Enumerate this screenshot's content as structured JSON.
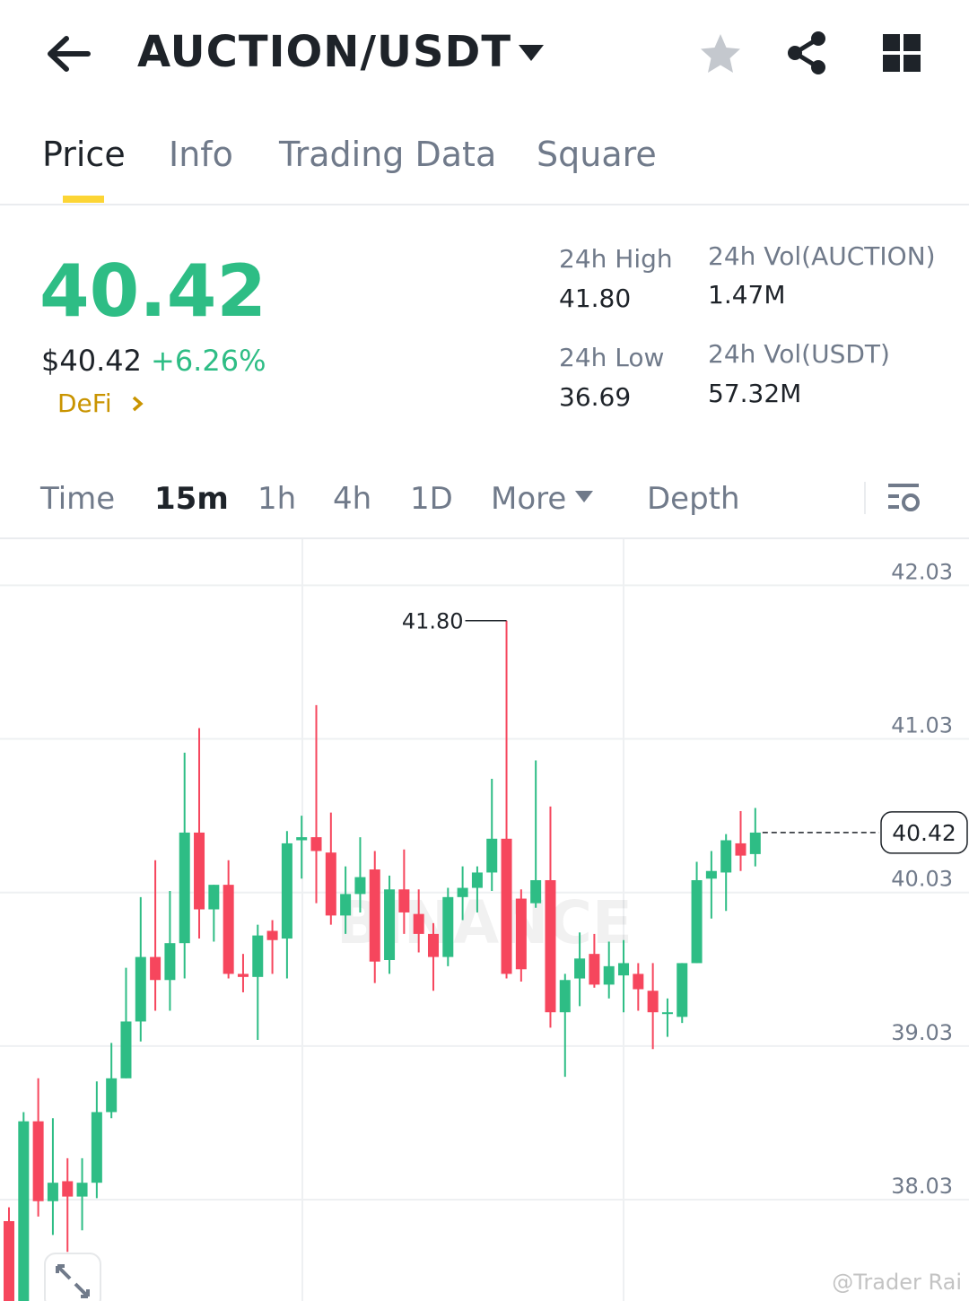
{
  "header": {
    "title": "AUCTION/USDT"
  },
  "tabs": [
    "Price",
    "Info",
    "Trading Data",
    "Square"
  ],
  "price": {
    "last": "40.42",
    "usd": "$40.42",
    "change": "+6.26%",
    "tag": "DeFi"
  },
  "stats": [
    {
      "label": "24h High",
      "value": "41.80"
    },
    {
      "label": "24h Vol(AUCTION)",
      "value": "1.47M"
    },
    {
      "label": "24h Low",
      "value": "36.69"
    },
    {
      "label": "24h Vol(USDT)",
      "value": "57.32M"
    }
  ],
  "intervals": [
    "Time",
    "15m",
    "1h",
    "4h",
    "1D",
    "More",
    "Depth"
  ],
  "watermark": "BINANCE",
  "credit": "@Trader Rai",
  "chart_data": {
    "type": "candlestick",
    "up_color": "#2ebd85",
    "down_color": "#f6465d",
    "open": [
      37.89,
      37.37,
      38.54,
      38.02,
      38.15,
      38.05,
      38.14,
      38.6,
      38.82,
      39.19,
      39.61,
      39.46,
      39.7,
      40.42,
      39.92,
      40.08,
      39.5,
      39.48,
      39.78,
      39.73,
      40.37,
      40.39,
      40.29,
      39.88,
      40.02,
      40.18,
      39.59,
      40.05,
      39.89,
      39.76,
      39.61,
      40.0,
      40.06,
      40.16,
      40.38,
      39.99,
      39.96,
      40.11,
      39.25,
      39.47,
      39.63,
      39.43,
      39.49,
      39.5,
      39.39,
      39.24,
      39.22,
      39.57,
      40.12,
      40.16,
      40.35,
      40.28
    ],
    "high": [
      37.98,
      38.6,
      38.82,
      38.56,
      38.3,
      38.3,
      38.8,
      39.05,
      39.54,
      40.0,
      40.24,
      40.04,
      40.94,
      41.1,
      40.08,
      40.24,
      39.63,
      39.82,
      39.85,
      40.43,
      40.53,
      41.25,
      40.55,
      40.2,
      40.39,
      40.3,
      40.14,
      40.31,
      40.05,
      39.83,
      40.06,
      40.2,
      40.2,
      40.77,
      41.8,
      40.05,
      40.89,
      40.59,
      39.5,
      39.77,
      39.76,
      39.71,
      39.72,
      39.57,
      39.57,
      39.34,
      39.57,
      40.23,
      40.3,
      40.41,
      40.56,
      40.58
    ],
    "low": [
      37.37,
      37.37,
      37.92,
      37.8,
      37.69,
      37.83,
      38.04,
      38.56,
      38.82,
      39.06,
      39.26,
      39.26,
      39.47,
      39.73,
      39.71,
      39.47,
      39.38,
      39.07,
      39.5,
      39.47,
      40.12,
      39.96,
      39.82,
      39.76,
      39.9,
      39.44,
      39.5,
      39.76,
      39.64,
      39.39,
      39.55,
      39.85,
      39.9,
      40.04,
      39.47,
      39.45,
      39.93,
      39.15,
      38.83,
      39.29,
      39.41,
      39.34,
      39.25,
      39.26,
      39.01,
      39.09,
      39.18,
      39.57,
      39.86,
      39.91,
      40.17,
      40.2
    ],
    "close": [
      37.37,
      38.54,
      38.02,
      38.14,
      38.05,
      38.14,
      38.6,
      38.82,
      39.19,
      39.61,
      39.46,
      39.7,
      40.42,
      39.92,
      40.08,
      39.5,
      39.48,
      39.75,
      39.72,
      40.35,
      40.39,
      40.3,
      39.88,
      40.02,
      40.13,
      39.58,
      40.05,
      39.9,
      39.76,
      39.61,
      40.0,
      40.06,
      40.16,
      40.38,
      39.5,
      39.53,
      40.11,
      39.25,
      39.46,
      39.6,
      39.43,
      39.55,
      39.57,
      39.4,
      39.25,
      39.25,
      39.57,
      40.11,
      40.17,
      40.37,
      40.27,
      40.42
    ],
    "ylim": [
      37.37,
      42.33
    ],
    "yticks": [
      42.03,
      41.03,
      40.03,
      39.03,
      38.03
    ],
    "grid": true,
    "high_marker": {
      "value": 41.8,
      "label": "41.80",
      "index": 34
    },
    "last_price": 40.42
  }
}
